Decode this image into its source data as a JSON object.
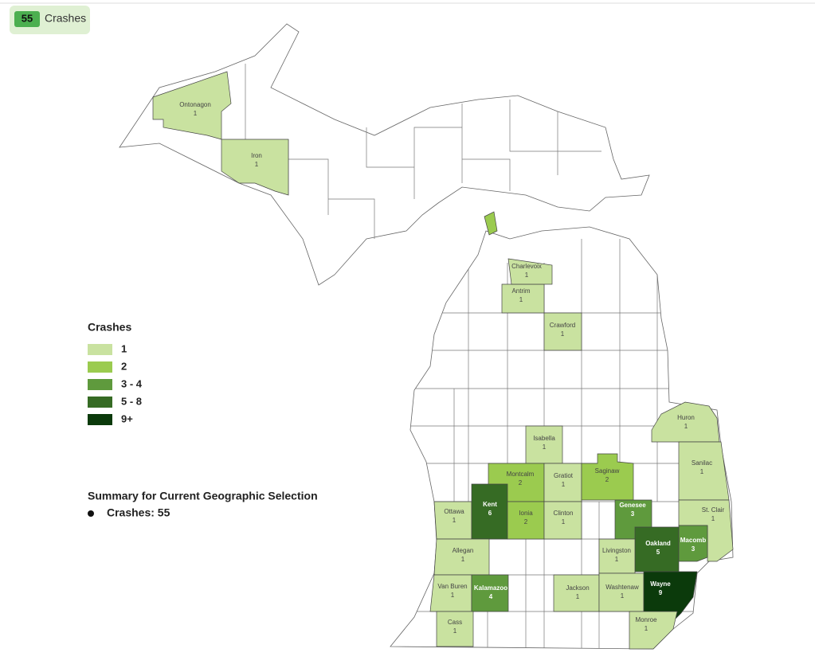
{
  "badge": {
    "count": "55",
    "label": "Crashes"
  },
  "legend": {
    "title": "Crashes",
    "items": [
      {
        "label": "1",
        "color": "#c9e2a0"
      },
      {
        "label": "2",
        "color": "#9bcb4f"
      },
      {
        "label": "3 - 4",
        "color": "#5f9a3d"
      },
      {
        "label": "5 - 8",
        "color": "#366b24"
      },
      {
        "label": "9+",
        "color": "#0b3a0b"
      }
    ]
  },
  "summary": {
    "title": "Summary for Current Geographic Selection",
    "items": [
      "Crashes: 55"
    ]
  },
  "counties": [
    {
      "name": "Ontonagon",
      "crashes": 1,
      "color": "#c9e2a0"
    },
    {
      "name": "Iron",
      "crashes": 1,
      "color": "#c9e2a0"
    },
    {
      "name": "Antrim",
      "crashes": 1,
      "color": "#c9e2a0"
    },
    {
      "name": "Charlevoix",
      "crashes": 1,
      "color": "#c9e2a0"
    },
    {
      "name": "Crawford",
      "crashes": 1,
      "color": "#c9e2a0"
    },
    {
      "name": "Huron",
      "crashes": 1,
      "color": "#c9e2a0"
    },
    {
      "name": "Isabella",
      "crashes": 1,
      "color": "#c9e2a0"
    },
    {
      "name": "Sanilac",
      "crashes": 1,
      "color": "#c9e2a0"
    },
    {
      "name": "Montcalm",
      "crashes": 2,
      "color": "#9bcb4f"
    },
    {
      "name": "Gratiot",
      "crashes": 1,
      "color": "#c9e2a0"
    },
    {
      "name": "Saginaw",
      "crashes": 2,
      "color": "#9bcb4f"
    },
    {
      "name": "Ottawa",
      "crashes": 1,
      "color": "#c9e2a0"
    },
    {
      "name": "Kent",
      "crashes": 6,
      "color": "#366b24"
    },
    {
      "name": "Ionia",
      "crashes": 2,
      "color": "#9bcb4f"
    },
    {
      "name": "Clinton",
      "crashes": 1,
      "color": "#c9e2a0"
    },
    {
      "name": "Genesee",
      "crashes": 3,
      "color": "#5f9a3d"
    },
    {
      "name": "St. Clair",
      "crashes": 1,
      "color": "#c9e2a0"
    },
    {
      "name": "Oakland",
      "crashes": 5,
      "color": "#366b24"
    },
    {
      "name": "Macomb",
      "crashes": 3,
      "color": "#5f9a3d"
    },
    {
      "name": "Allegan",
      "crashes": 1,
      "color": "#c9e2a0"
    },
    {
      "name": "Livingston",
      "crashes": 1,
      "color": "#c9e2a0"
    },
    {
      "name": "Van Buren",
      "crashes": 1,
      "color": "#c9e2a0"
    },
    {
      "name": "Kalamazoo",
      "crashes": 4,
      "color": "#5f9a3d"
    },
    {
      "name": "Jackson",
      "crashes": 1,
      "color": "#c9e2a0"
    },
    {
      "name": "Washtenaw",
      "crashes": 1,
      "color": "#c9e2a0"
    },
    {
      "name": "Wayne",
      "crashes": 9,
      "color": "#0b3a0b"
    },
    {
      "name": "Cass",
      "crashes": 1,
      "color": "#c9e2a0"
    },
    {
      "name": "Monroe",
      "crashes": 1,
      "color": "#c9e2a0"
    }
  ]
}
